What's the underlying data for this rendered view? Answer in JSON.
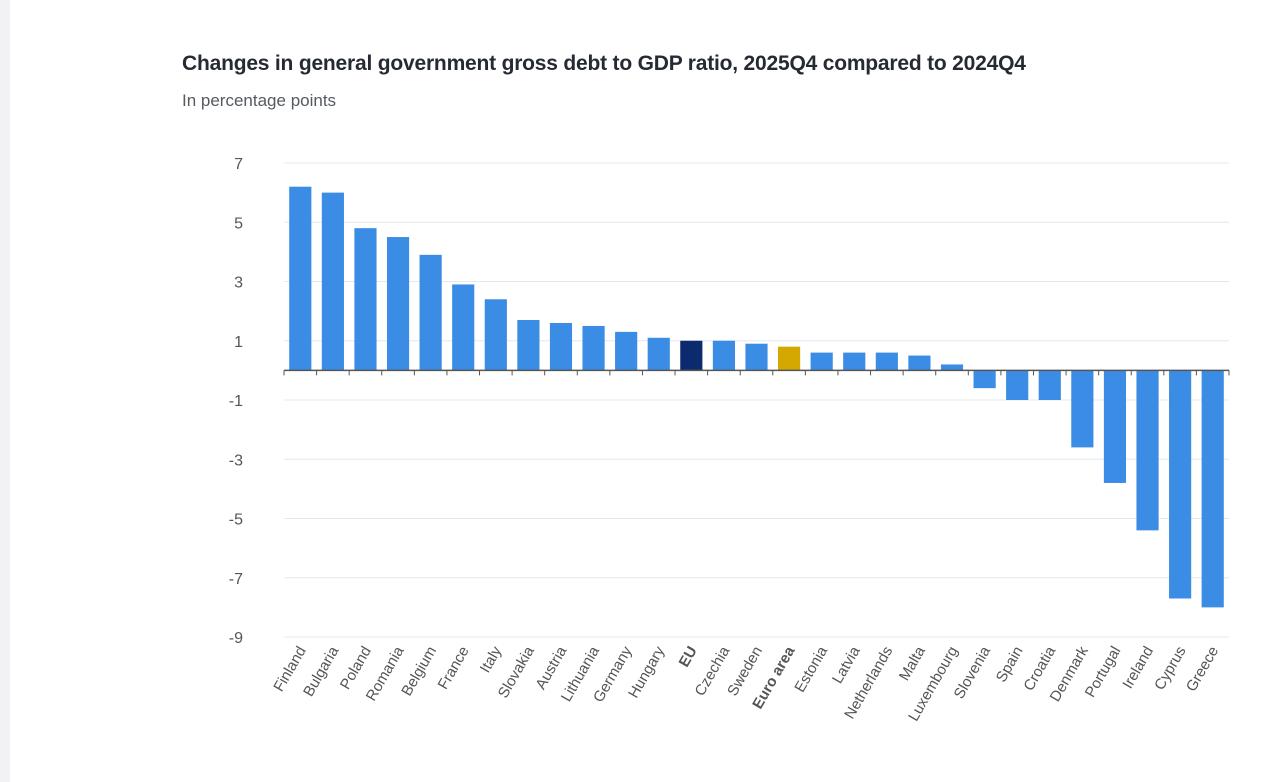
{
  "chart_data": {
    "type": "bar",
    "title": "Changes in general government gross debt to GDP ratio, 2025Q4 compared to 2024Q4",
    "subtitle": "In percentage points",
    "xlabel": "",
    "ylabel": "",
    "ylim": [
      -9,
      7
    ],
    "yticks": [
      7,
      5,
      3,
      1,
      -1,
      -3,
      -5,
      -7,
      -9
    ],
    "grid": true,
    "categories": [
      "Finland",
      "Bulgaria",
      "Poland",
      "Romania",
      "Belgium",
      "France",
      "Italy",
      "Slovakia",
      "Austria",
      "Lithuania",
      "Germany",
      "Hungary",
      "EU",
      "Czechia",
      "Sweden",
      "Euro area",
      "Estonia",
      "Latvia",
      "Netherlands",
      "Malta",
      "Luxembourg",
      "Slovenia",
      "Spain",
      "Croatia",
      "Denmark",
      "Portugal",
      "Ireland",
      "Cyprus",
      "Greece"
    ],
    "values": [
      6.2,
      6.0,
      4.8,
      4.5,
      3.9,
      2.9,
      2.4,
      1.7,
      1.6,
      1.5,
      1.3,
      1.1,
      1.0,
      1.0,
      0.9,
      0.8,
      0.6,
      0.6,
      0.6,
      0.5,
      0.2,
      -0.6,
      -1.0,
      -1.0,
      -2.6,
      -3.8,
      -5.4,
      -7.7,
      -8.0
    ],
    "highlight": {
      "EU": "#0c2a6e",
      "Euro area": "#d4a800"
    },
    "bold_categories": [
      "EU",
      "Euro area"
    ],
    "colors": {
      "bar": "#3a8ce4",
      "grid": "#e4e8ee",
      "axis": "#555555",
      "tick_label": "#555555"
    }
  }
}
